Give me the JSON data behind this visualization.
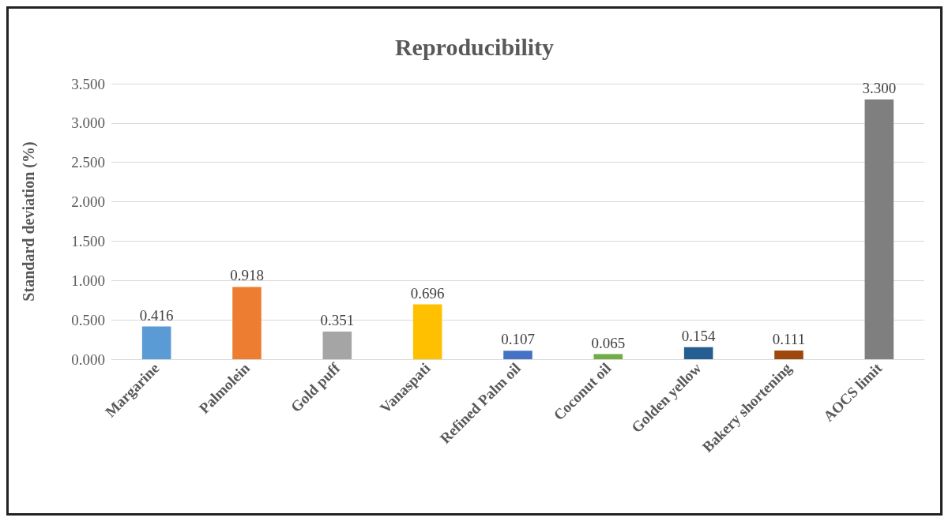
{
  "chart_data": {
    "type": "bar",
    "title": "Reproducibility",
    "ylabel": "Standard deviation (%)",
    "categories": [
      "Margarine",
      "Palmolein",
      "Gold puff",
      "Vanaspati",
      "Refined Palm oil",
      "Coconut oil",
      "Golden yellow",
      "Bakery shortening",
      "AOCS limit"
    ],
    "values": [
      0.416,
      0.918,
      0.351,
      0.696,
      0.107,
      0.065,
      0.154,
      0.111,
      3.3
    ],
    "colors": [
      "#5b9bd5",
      "#ed7d31",
      "#a5a5a5",
      "#ffc000",
      "#4472c4",
      "#70ad47",
      "#255e91",
      "#9e480e",
      "#7f7f7f"
    ],
    "value_labels": [
      "0.416",
      "0.918",
      "0.351",
      "0.696",
      "0.107",
      "0.065",
      "0.154",
      "0.111",
      "3.300"
    ],
    "ylim": [
      0,
      3.5
    ],
    "yticks": [
      {
        "value": 0,
        "label": "0.000"
      },
      {
        "value": 0.5,
        "label": "0.500"
      },
      {
        "value": 1,
        "label": "1.000"
      },
      {
        "value": 1.5,
        "label": "1.500"
      },
      {
        "value": 2,
        "label": "2.000"
      },
      {
        "value": 2.5,
        "label": "2.500"
      },
      {
        "value": 3,
        "label": "3.000"
      },
      {
        "value": 3.5,
        "label": "3.500"
      }
    ],
    "grid": "y"
  }
}
